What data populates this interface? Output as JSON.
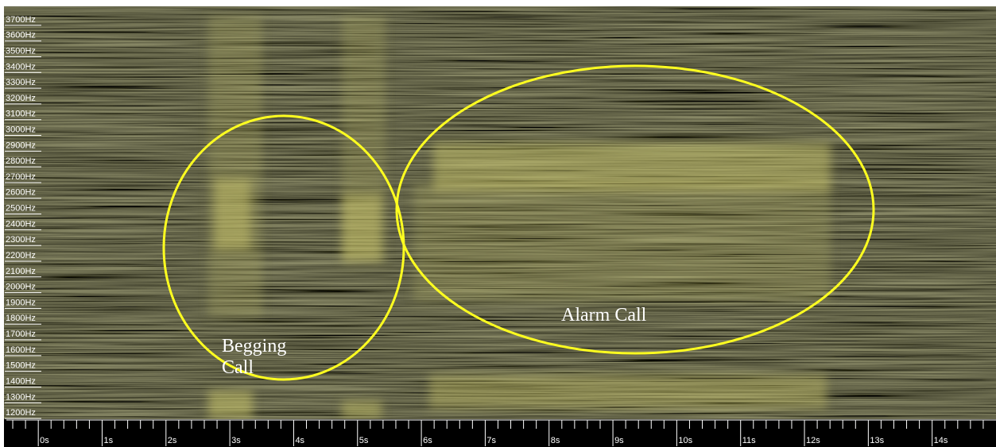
{
  "chart_data": {
    "type": "spectrogram",
    "xlim": [
      -0.5,
      15
    ],
    "ylim": [
      1160,
      3780
    ],
    "xticks": [
      {
        "value": 0,
        "label": "0s"
      },
      {
        "value": 1,
        "label": "1s"
      },
      {
        "value": 2,
        "label": "2s"
      },
      {
        "value": 3,
        "label": "3s"
      },
      {
        "value": 4,
        "label": "4s"
      },
      {
        "value": 5,
        "label": "5s"
      },
      {
        "value": 6,
        "label": "6s"
      },
      {
        "value": 7,
        "label": "7s"
      },
      {
        "value": 8,
        "label": "8s"
      },
      {
        "value": 9,
        "label": "9s"
      },
      {
        "value": 10,
        "label": "10s"
      },
      {
        "value": 11,
        "label": "11s"
      },
      {
        "value": 12,
        "label": "12s"
      },
      {
        "value": 13,
        "label": "13s"
      },
      {
        "value": 14,
        "label": "14s"
      }
    ],
    "minor_xticks": [
      -0.4,
      -0.2,
      0.2,
      0.4,
      0.6,
      0.8,
      1.2,
      1.4,
      1.6,
      1.8,
      2.2,
      2.4,
      2.6,
      2.8,
      3.2,
      3.4,
      3.6,
      3.8,
      4.2,
      4.4,
      4.6,
      4.8,
      5.2,
      5.4,
      5.6,
      5.8,
      6.2,
      6.4,
      6.6,
      6.8,
      7.2,
      7.4,
      7.6,
      7.8,
      8.2,
      8.4,
      8.6,
      8.8,
      9.2,
      9.4,
      9.6,
      9.8,
      10.2,
      10.4,
      10.6,
      10.8,
      11.2,
      11.4,
      11.6,
      11.8,
      12.2,
      12.4,
      12.6,
      12.8,
      13.2,
      13.4,
      13.6,
      13.8,
      14.2,
      14.4,
      14.6,
      14.8
    ],
    "yticks": [
      {
        "value": 1200,
        "label": "1200Hz"
      },
      {
        "value": 1300,
        "label": "1300Hz"
      },
      {
        "value": 1400,
        "label": "1400Hz"
      },
      {
        "value": 1500,
        "label": "1500Hz"
      },
      {
        "value": 1600,
        "label": "1600Hz"
      },
      {
        "value": 1700,
        "label": "1700Hz"
      },
      {
        "value": 1800,
        "label": "1800Hz"
      },
      {
        "value": 1900,
        "label": "1900Hz"
      },
      {
        "value": 2000,
        "label": "2000Hz"
      },
      {
        "value": 2100,
        "label": "2100Hz"
      },
      {
        "value": 2200,
        "label": "2200Hz"
      },
      {
        "value": 2300,
        "label": "2300Hz"
      },
      {
        "value": 2400,
        "label": "2400Hz"
      },
      {
        "value": 2500,
        "label": "2500Hz"
      },
      {
        "value": 2600,
        "label": "2600Hz"
      },
      {
        "value": 2700,
        "label": "2700Hz"
      },
      {
        "value": 2800,
        "label": "2800Hz"
      },
      {
        "value": 2900,
        "label": "2900Hz"
      },
      {
        "value": 3000,
        "label": "3000Hz"
      },
      {
        "value": 3100,
        "label": "3100Hz"
      },
      {
        "value": 3200,
        "label": "3200Hz"
      },
      {
        "value": 3300,
        "label": "3300Hz"
      },
      {
        "value": 3400,
        "label": "3400Hz"
      },
      {
        "value": 3500,
        "label": "3500Hz"
      },
      {
        "value": 3600,
        "label": "3600Hz"
      },
      {
        "value": 3700,
        "label": "3700Hz"
      }
    ],
    "annotations": [
      "Begging Call",
      "Alarm Call"
    ]
  }
}
